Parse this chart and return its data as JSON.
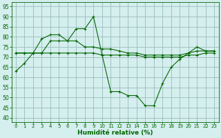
{
  "x": [
    0,
    1,
    2,
    3,
    4,
    5,
    6,
    7,
    8,
    9,
    10,
    11,
    12,
    13,
    14,
    15,
    16,
    17,
    18,
    19,
    20,
    21,
    22,
    23
  ],
  "line_max": [
    63,
    67,
    72,
    79,
    81,
    81,
    78,
    84,
    84,
    90,
    71,
    53,
    53,
    51,
    51,
    46,
    46,
    57,
    65,
    69,
    72,
    75,
    73,
    73
  ],
  "line_mid": [
    72,
    72,
    72,
    72,
    78,
    78,
    78,
    78,
    75,
    75,
    74,
    74,
    73,
    72,
    72,
    71,
    71,
    71,
    71,
    71,
    72,
    73,
    73,
    73
  ],
  "line_min": [
    72,
    72,
    72,
    72,
    72,
    72,
    72,
    72,
    72,
    72,
    71,
    71,
    71,
    71,
    71,
    70,
    70,
    70,
    70,
    70,
    71,
    71,
    72,
    72
  ],
  "bg_color": "#d5eeee",
  "grid_color": "#99bbbb",
  "line_color": "#006600",
  "xlabel": "Humidité relative (%)",
  "ylim": [
    38,
    97
  ],
  "xlim": [
    -0.5,
    23.5
  ],
  "yticks": [
    40,
    45,
    50,
    55,
    60,
    65,
    70,
    75,
    80,
    85,
    90,
    95
  ],
  "xticks": [
    0,
    1,
    2,
    3,
    4,
    5,
    6,
    7,
    8,
    9,
    10,
    11,
    12,
    13,
    14,
    15,
    16,
    17,
    18,
    19,
    20,
    21,
    22,
    23
  ]
}
